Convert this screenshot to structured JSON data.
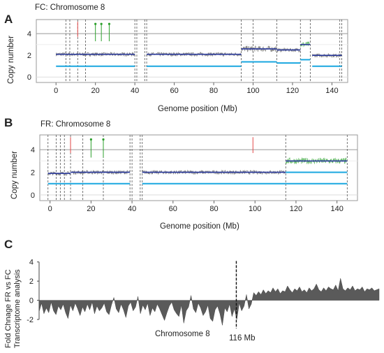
{
  "panels": {
    "A": {
      "letter": "A",
      "title": "FC: Chromosome  8"
    },
    "B": {
      "letter": "B",
      "title": "FR: Chromosome  8"
    },
    "C": {
      "letter": "C"
    }
  },
  "chart_data": [
    {
      "type": "scatter",
      "panel": "A",
      "title": "FC: Chromosome  8",
      "xlabel": "Genome position (Mb)",
      "ylabel": "Copy number",
      "xlim": [
        -10,
        148
      ],
      "ylim": [
        -0.5,
        5.3
      ],
      "x_ticks": [
        0,
        20,
        40,
        60,
        80,
        100,
        120,
        140
      ],
      "y_ticks": [
        0,
        2,
        4
      ],
      "copy_number_segments": [
        {
          "x0": 0,
          "x1": 5,
          "y": 2.1
        },
        {
          "x0": 5,
          "x1": 40,
          "y": 2.1
        },
        {
          "x0": 46,
          "x1": 94,
          "y": 2.1
        },
        {
          "x0": 94,
          "x1": 112,
          "y": 2.6
        },
        {
          "x0": 112,
          "x1": 124,
          "y": 2.5
        },
        {
          "x0": 124,
          "x1": 129,
          "y": 3.0
        },
        {
          "x0": 130,
          "x1": 145,
          "y": 2.0
        }
      ],
      "allele_segments": [
        {
          "x0": 0,
          "x1": 40,
          "y": 1.0
        },
        {
          "x0": 46,
          "x1": 94,
          "y": 1.0
        },
        {
          "x0": 94,
          "x1": 112,
          "y": 1.4
        },
        {
          "x0": 112,
          "x1": 124,
          "y": 1.3
        },
        {
          "x0": 124,
          "x1": 129,
          "y": 1.6
        },
        {
          "x0": 130,
          "x1": 145,
          "y": 1.0
        }
      ],
      "boundaries": [
        5,
        7,
        11,
        15,
        40,
        41,
        45,
        46,
        94,
        100,
        112,
        124,
        129,
        144,
        145
      ],
      "green_marks": [
        20,
        23,
        27
      ],
      "red_marks": [
        11
      ]
    },
    {
      "type": "scatter",
      "panel": "B",
      "title": "FR: Chromosome  8",
      "xlabel": "Genome position (Mb)",
      "ylabel": "Copy number",
      "xlim": [
        -5,
        150
      ],
      "ylim": [
        -0.5,
        5.3
      ],
      "x_ticks": [
        0,
        20,
        40,
        60,
        80,
        100,
        120,
        140
      ],
      "y_ticks": [
        0,
        2,
        4
      ],
      "copy_number_segments": [
        {
          "x0": -1,
          "x1": 10,
          "y": 1.9
        },
        {
          "x0": 10,
          "x1": 39,
          "y": 2.0
        },
        {
          "x0": 45,
          "x1": 115,
          "y": 2.0
        },
        {
          "x0": 115,
          "x1": 145,
          "y": 3.0
        }
      ],
      "allele_segments": [
        {
          "x0": -1,
          "x1": 39,
          "y": 1.0
        },
        {
          "x0": 45,
          "x1": 115,
          "y": 1.0
        },
        {
          "x0": 115,
          "x1": 145,
          "y": 1.0
        },
        {
          "x0": 115,
          "x1": 145,
          "y": 2.0
        }
      ],
      "boundaries": [
        -1,
        3,
        5,
        7,
        10,
        16,
        26,
        39,
        40,
        44,
        45,
        115,
        145
      ],
      "green_marks": [
        20,
        26
      ],
      "red_marks": [
        10,
        99
      ]
    },
    {
      "type": "area",
      "panel": "C",
      "xlabel": "Chromosome  8",
      "ylabel": "Fold Chnage FR vs FC\nTranscriptome analysis",
      "ylim": [
        -2.8,
        4.2
      ],
      "y_ticks": [
        -2,
        0,
        2,
        4
      ],
      "annotation": "116 Mb",
      "annotation_x_fraction": 0.58,
      "values": [
        -1.2,
        -0.3,
        -1.4,
        -0.8,
        -1.3,
        -0.2,
        -1.1,
        -1.5,
        -0.6,
        -1.0,
        -0.4,
        -1.3,
        -1.9,
        -0.5,
        -1.1,
        -0.3,
        -0.9,
        -1.6,
        -0.7,
        -1.2,
        -0.4,
        -1.0,
        -0.2,
        -1.4,
        -0.6,
        -1.1,
        -0.8,
        -0.3,
        -1.2,
        -1.5,
        -0.5,
        0.3,
        -0.9,
        -1.3,
        -0.4,
        -1.0,
        -1.8,
        -0.6,
        -0.2,
        -1.1,
        -0.7,
        0.4,
        -1.4,
        -0.5,
        -1.0,
        -0.3,
        -1.6,
        -0.8,
        -1.2,
        -0.4,
        -0.9,
        -1.5,
        -2.1,
        -1.3,
        -0.6,
        -0.2,
        -1.0,
        -1.4,
        -1.7,
        -0.5,
        -2.4,
        -1.1,
        -0.7,
        0.5,
        -0.9,
        -1.3,
        -0.3,
        -0.8,
        -1.6,
        -1.2,
        -0.5,
        -1.9,
        -2.2,
        -1.0,
        -0.6,
        -1.4,
        -2.6,
        -0.8,
        -1.2,
        -0.4,
        -1.7,
        -0.9,
        -2.0,
        -0.3,
        -1.1,
        -0.6,
        0.6,
        -0.9,
        -0.4,
        0.8,
        0.5,
        0.9,
        0.6,
        1.1,
        0.7,
        1.0,
        0.8,
        1.3,
        0.9,
        1.2,
        0.7,
        1.0,
        0.9,
        1.5,
        1.1,
        0.8,
        1.2,
        1.0,
        1.4,
        0.9,
        1.1,
        0.8,
        1.3,
        1.0,
        1.2,
        1.7,
        1.1,
        0.9,
        1.3,
        1.0,
        1.4,
        1.2,
        1.1,
        1.6,
        1.0,
        2.3,
        1.2,
        1.0,
        1.3,
        1.1,
        1.5,
        1.0,
        1.2,
        1.1,
        1.4,
        0.9,
        1.2,
        1.1,
        1.3,
        1.0,
        1.1,
        1.2
      ]
    }
  ]
}
